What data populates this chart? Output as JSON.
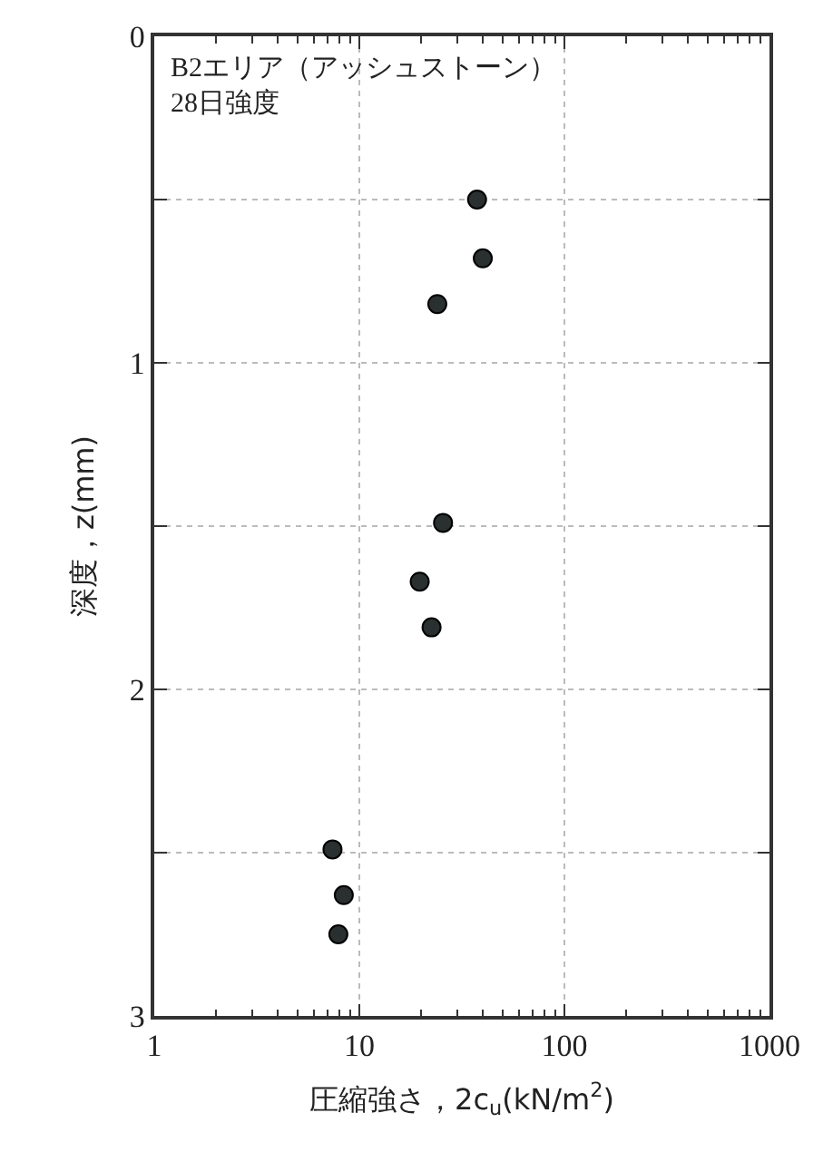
{
  "chart_data": {
    "type": "scatter",
    "xlabel": "圧縮強さ，2c$_{u}$(kN/m$^{2}$)",
    "ylabel": "深度，z(mm)",
    "annotations": [
      "B2エリア（アッシュストーン）\n28日強度"
    ],
    "x": [
      37.5,
      40,
      24,
      25.6,
      19.7,
      22.5,
      7.4,
      8.4,
      7.9
    ],
    "series": [
      {
        "color": "#2a2f2f",
        "values": [
          0.5,
          0.68,
          0.82,
          1.49,
          1.67,
          1.81,
          2.49,
          2.63,
          2.75
        ]
      }
    ],
    "log": "x",
    "xlim": [
      1,
      1000
    ],
    "xticks": [
      1,
      10,
      100,
      1000
    ],
    "ylim": [
      3,
      0
    ],
    "yticks": [
      0,
      {
        "value": 0.5,
        "label": null
      },
      1,
      {
        "value": 1.5,
        "label": null
      },
      2,
      {
        "value": 2.5,
        "label": null
      },
      3
    ],
    "grid": true,
    "marker": "circle"
  }
}
